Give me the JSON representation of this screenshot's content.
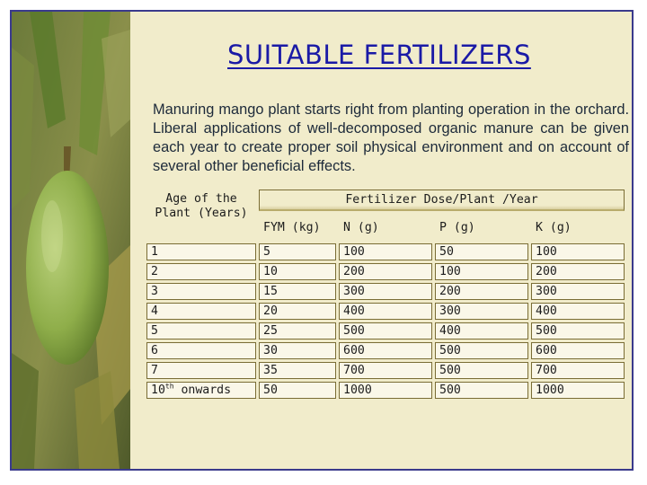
{
  "title": "SUITABLE FERTILIZERS",
  "intro": "Manuring mango plant starts right from planting operation in the orchard. Liberal applications of well-decomposed organic manure can be given each year to create proper soil physical environment and on account of several other beneficial effects.",
  "table": {
    "age_header": "Age of the Plant (Years)",
    "group_header": "Fertilizer Dose/Plant /Year",
    "columns": [
      "FYM (kg)",
      "N (g)",
      "P (g)",
      "K (g)"
    ],
    "rows": [
      {
        "age": "1",
        "fym": "5",
        "n": "100",
        "p": "50",
        "k": "100"
      },
      {
        "age": "2",
        "fym": "10",
        "n": "200",
        "p": "100",
        "k": "200"
      },
      {
        "age": "3",
        "fym": "15",
        "n": "300",
        "p": "200",
        "k": "300"
      },
      {
        "age": "4",
        "fym": "20",
        "n": "400",
        "p": "300",
        "k": "400"
      },
      {
        "age": "5",
        "fym": "25",
        "n": "500",
        "p": "400",
        "k": "500"
      },
      {
        "age": "6",
        "fym": "30",
        "n": "600",
        "p": "500",
        "k": "600"
      },
      {
        "age": "7",
        "fym": "35",
        "n": "700",
        "p": "500",
        "k": "700"
      },
      {
        "age_num": "10",
        "age_sup": "th",
        "age_rest": " onwards",
        "fym": "50",
        "n": "1000",
        "p": "500",
        "k": "1000"
      }
    ]
  },
  "colors": {
    "title": "#1a1aa6",
    "background": "#f1eccb",
    "border": "#3a3a8c"
  },
  "image": "mango-photo"
}
